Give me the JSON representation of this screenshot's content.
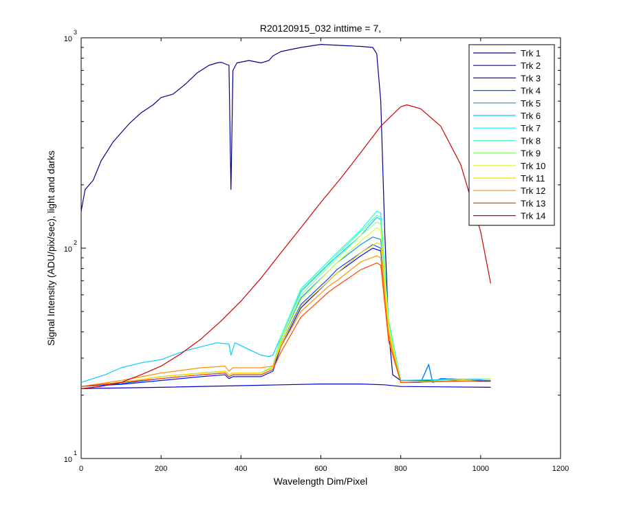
{
  "chart_data": {
    "type": "line",
    "title": "R20120915_032 inttime = 7,",
    "xlabel": "Wavelength Dim/Pixel",
    "ylabel": "Signal Intensity (ADU/pix/sec), light and darks",
    "xlim": [
      0,
      1200
    ],
    "ylim": [
      10,
      1000
    ],
    "yscale": "log",
    "grid": false,
    "legend_position": "top-right",
    "x_ticks": [
      "0",
      "200",
      "400",
      "600",
      "800",
      "1000",
      "1200"
    ],
    "x_tick_values": [
      0,
      200,
      400,
      600,
      800,
      1000,
      1200
    ],
    "y_ticks": [
      {
        "value": 10,
        "base": "10",
        "exp": "1"
      },
      {
        "value": 100,
        "base": "10",
        "exp": "2"
      },
      {
        "value": 1000,
        "base": "10",
        "exp": "3"
      }
    ],
    "series": [
      {
        "name": "Trk 1",
        "color": "#00008f",
        "x": [
          0,
          10,
          30,
          50,
          80,
          120,
          150,
          180,
          200,
          230,
          260,
          290,
          320,
          340,
          350,
          370,
          375,
          380,
          390,
          420,
          450,
          470,
          480,
          500,
          550,
          600,
          650,
          700,
          730,
          740,
          750,
          760,
          770,
          780,
          800,
          850,
          900,
          1000,
          1025
        ],
        "y": [
          150,
          190,
          210,
          260,
          320,
          390,
          440,
          480,
          520,
          540,
          600,
          680,
          740,
          760,
          765,
          740,
          190,
          700,
          760,
          780,
          760,
          780,
          820,
          860,
          900,
          930,
          920,
          910,
          900,
          840,
          500,
          120,
          40,
          25,
          23.5,
          23.5,
          23.4,
          23.3,
          23.3
        ]
      },
      {
        "name": "Trk 2",
        "color": "#0000c8",
        "x": [
          0,
          200,
          400,
          500,
          600,
          700,
          760,
          800,
          1025
        ],
        "y": [
          21.5,
          21.8,
          22.2,
          22.4,
          22.6,
          22.6,
          22.4,
          22.0,
          21.8
        ]
      },
      {
        "name": "Trk 3",
        "color": "#0010ff",
        "x": [
          0,
          100,
          200,
          300,
          360,
          370,
          380,
          450,
          480,
          500,
          550,
          620,
          640,
          700,
          730,
          750,
          770,
          800,
          850,
          870,
          880,
          900,
          1025
        ],
        "y": [
          22,
          22.5,
          23.5,
          24.5,
          25,
          24,
          24.5,
          24.5,
          26,
          34,
          52,
          70,
          76,
          92,
          100,
          97,
          40,
          23,
          23,
          28,
          23,
          24,
          23.5
        ]
      },
      {
        "name": "Trk 4",
        "color": "#0050ff",
        "x": [
          0,
          100,
          200,
          300,
          360,
          370,
          380,
          450,
          480,
          500,
          550,
          620,
          640,
          700,
          730,
          750,
          770,
          800,
          850,
          870,
          880,
          900,
          1025
        ],
        "y": [
          22,
          22.7,
          24,
          25,
          25.5,
          24.5,
          25,
          25,
          26.5,
          35,
          54,
          72,
          79,
          95,
          104,
          100,
          40,
          23,
          23,
          28,
          23,
          24,
          23.5
        ]
      },
      {
        "name": "Trk 5",
        "color": "#0090ff",
        "x": [
          0,
          100,
          200,
          300,
          360,
          370,
          380,
          450,
          480,
          500,
          550,
          620,
          640,
          700,
          730,
          750,
          770,
          800,
          850,
          870,
          880,
          900,
          1025
        ],
        "y": [
          22,
          23,
          24.5,
          25.5,
          26,
          25,
          25.5,
          25.5,
          27,
          36,
          58,
          78,
          85,
          104,
          113,
          110,
          40,
          23,
          23,
          28,
          23,
          24,
          23.5
        ]
      },
      {
        "name": "Trk 6",
        "color": "#00d0ff",
        "x": [
          0,
          30,
          60,
          100,
          150,
          200,
          230,
          260,
          300,
          340,
          370,
          375,
          385,
          420,
          450,
          470,
          480,
          500,
          550,
          620,
          640,
          700,
          740,
          750,
          770,
          800,
          1025
        ],
        "y": [
          23,
          24,
          25,
          27,
          28.5,
          29.5,
          31,
          32.5,
          34,
          35.5,
          35,
          31,
          35.5,
          33,
          31,
          30.5,
          31,
          38,
          62,
          84,
          91,
          115,
          140,
          137,
          45,
          23.5,
          24
        ]
      },
      {
        "name": "Trk 7",
        "color": "#10ffef",
        "x": [
          0,
          100,
          200,
          300,
          360,
          370,
          380,
          450,
          480,
          500,
          550,
          620,
          640,
          700,
          740,
          750,
          770,
          800,
          1025
        ],
        "y": [
          22,
          23,
          24.5,
          25.5,
          26,
          25,
          25.5,
          25.5,
          27.5,
          38,
          64,
          87,
          95,
          122,
          150,
          147,
          45,
          23,
          23.5
        ]
      },
      {
        "name": "Trk 8",
        "color": "#50ffaf",
        "x": [
          0,
          100,
          200,
          300,
          360,
          370,
          380,
          450,
          480,
          500,
          550,
          620,
          640,
          700,
          740,
          750,
          770,
          800,
          1025
        ],
        "y": [
          22,
          23,
          24.5,
          25.5,
          26,
          25,
          25.5,
          25.5,
          27.5,
          38,
          63,
          85,
          93,
          120,
          143,
          140,
          44,
          23,
          23.5
        ]
      },
      {
        "name": "Trk 9",
        "color": "#90ff6f",
        "x": [
          0,
          100,
          200,
          300,
          360,
          370,
          380,
          450,
          480,
          500,
          550,
          620,
          640,
          700,
          740,
          750,
          770,
          800,
          1025
        ],
        "y": [
          22,
          23,
          24.5,
          25.5,
          26,
          25,
          25.5,
          25.5,
          27.5,
          37,
          60,
          82,
          89,
          115,
          133,
          130,
          43,
          23,
          23.5
        ]
      },
      {
        "name": "Trk 10",
        "color": "#d0ff2f",
        "x": [
          0,
          100,
          200,
          300,
          360,
          370,
          380,
          450,
          480,
          500,
          550,
          620,
          640,
          700,
          740,
          750,
          770,
          800,
          1025
        ],
        "y": [
          22,
          23,
          24.5,
          25.5,
          26,
          25,
          25.5,
          25.5,
          27,
          36,
          57,
          78,
          85,
          108,
          125,
          122,
          42,
          23,
          24
        ]
      },
      {
        "name": "Trk 11",
        "color": "#ffd000",
        "x": [
          0,
          100,
          200,
          300,
          360,
          370,
          380,
          450,
          480,
          500,
          550,
          620,
          640,
          700,
          740,
          750,
          770,
          800,
          1025
        ],
        "y": [
          22,
          23,
          24.5,
          25.5,
          26,
          25,
          25.5,
          25.5,
          27,
          35,
          53,
          70,
          76,
          95,
          106,
          104,
          40,
          23,
          23.5
        ]
      },
      {
        "name": "Trk 12",
        "color": "#ff9000",
        "x": [
          0,
          100,
          200,
          300,
          360,
          370,
          380,
          450,
          480,
          500,
          550,
          620,
          640,
          700,
          740,
          750,
          770,
          800,
          1025
        ],
        "y": [
          22,
          23.5,
          25.5,
          27,
          27.5,
          26,
          27,
          27,
          27.5,
          34,
          50,
          66,
          70,
          86,
          92,
          90,
          38,
          23,
          23.5
        ]
      },
      {
        "name": "Trk 13",
        "color": "#ff4400",
        "x": [
          0,
          100,
          200,
          300,
          360,
          370,
          380,
          450,
          480,
          500,
          550,
          620,
          640,
          700,
          740,
          750,
          770,
          800,
          1025
        ],
        "y": [
          22,
          23,
          24,
          25,
          25.5,
          24.5,
          25,
          25,
          26.5,
          32,
          47,
          62,
          66,
          79,
          85,
          83,
          36,
          23,
          23.5
        ]
      },
      {
        "name": "Trk 14",
        "color": "#d00000",
        "x": [
          0,
          50,
          100,
          150,
          200,
          250,
          300,
          350,
          400,
          450,
          500,
          550,
          600,
          650,
          700,
          750,
          800,
          815,
          850,
          900,
          950,
          1000,
          1025
        ],
        "y": [
          21.5,
          22,
          23,
          25,
          27.5,
          31.5,
          37,
          45,
          56,
          72,
          95,
          125,
          165,
          215,
          285,
          380,
          470,
          480,
          460,
          380,
          250,
          120,
          68
        ]
      }
    ]
  }
}
